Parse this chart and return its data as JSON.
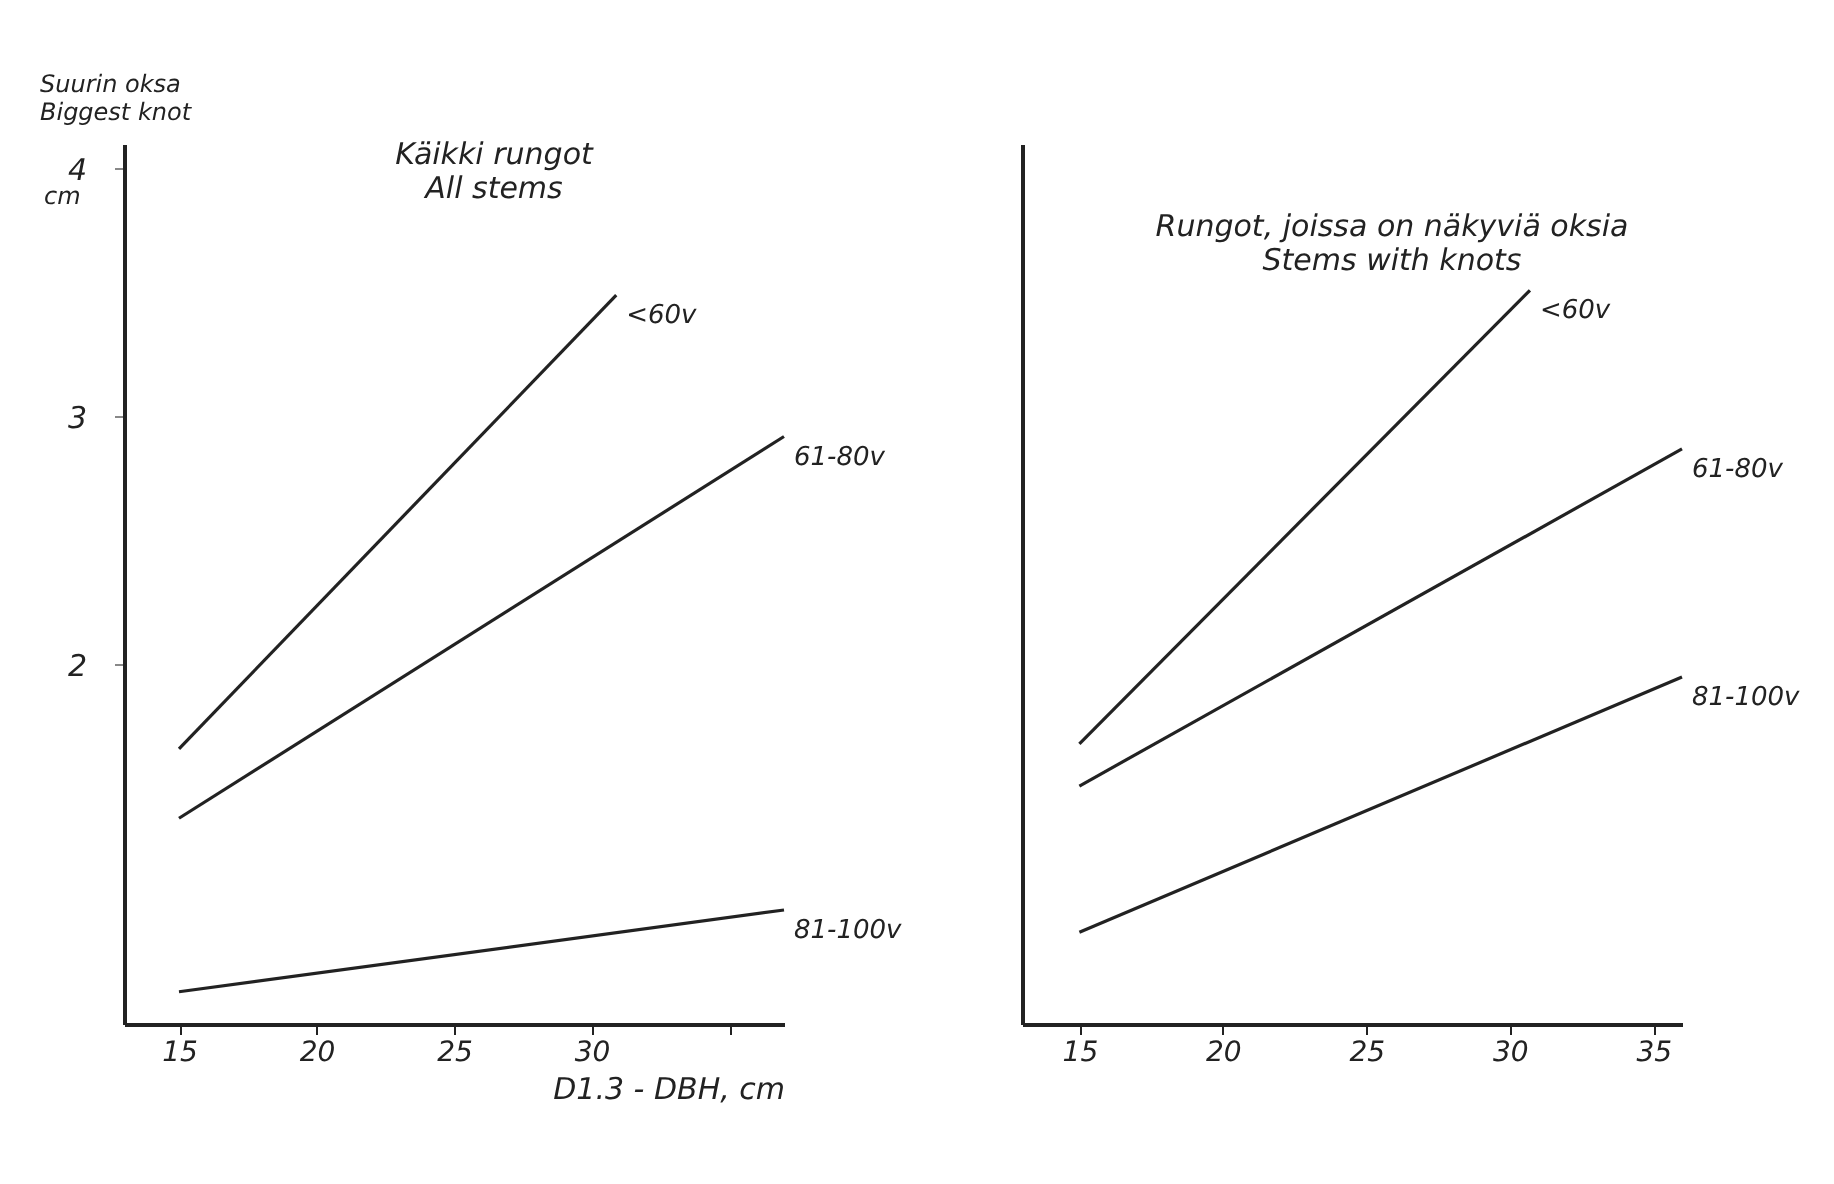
{
  "chart_data": [
    {
      "type": "line",
      "title": "Käikki rungot\nAll stems",
      "ylabel": "Suurin oksa\nBiggest knot",
      "xlabel": "D1.3 - DBH, cm",
      "annotations": [
        "cm"
      ],
      "xlim": [
        13,
        37
      ],
      "xticks": [
        15,
        20,
        25,
        30,
        {
          "value": 35,
          "label": null
        }
      ],
      "ylim": [
        0.55,
        4.1
      ],
      "yticks": [
        2,
        3,
        4
      ],
      "grid": false,
      "legend": false,
      "series": [
        {
          "name": "<60v",
          "color": "#222222",
          "x": [
            15,
            30.9
          ],
          "values": [
            1.66,
            3.49
          ]
        },
        {
          "name": "61-80v",
          "color": "#222222",
          "x": [
            15,
            37
          ],
          "values": [
            1.38,
            2.92
          ]
        },
        {
          "name": "81-100v",
          "color": "#222222",
          "x": [
            15,
            37
          ],
          "values": [
            0.68,
            1.01
          ]
        }
      ]
    },
    {
      "type": "line",
      "title": "Rungot, joissa on näkyviä oksia\nStems with knots",
      "tick_labels": "x",
      "xlim": [
        13,
        36
      ],
      "xticks": [
        15,
        20,
        25,
        30,
        35
      ],
      "ylim": [
        0.55,
        4.1
      ],
      "yticks": [
        2,
        3,
        4
      ],
      "grid": false,
      "legend": false,
      "series": [
        {
          "name": "<60v",
          "color": "#222222",
          "x": [
            15,
            30.7
          ],
          "values": [
            1.68,
            3.51
          ]
        },
        {
          "name": "61-80v",
          "color": "#222222",
          "x": [
            15,
            36
          ],
          "values": [
            1.51,
            2.87
          ]
        },
        {
          "name": "81-100v",
          "color": "#222222",
          "x": [
            15,
            36
          ],
          "values": [
            0.92,
            1.95
          ]
        }
      ]
    }
  ]
}
